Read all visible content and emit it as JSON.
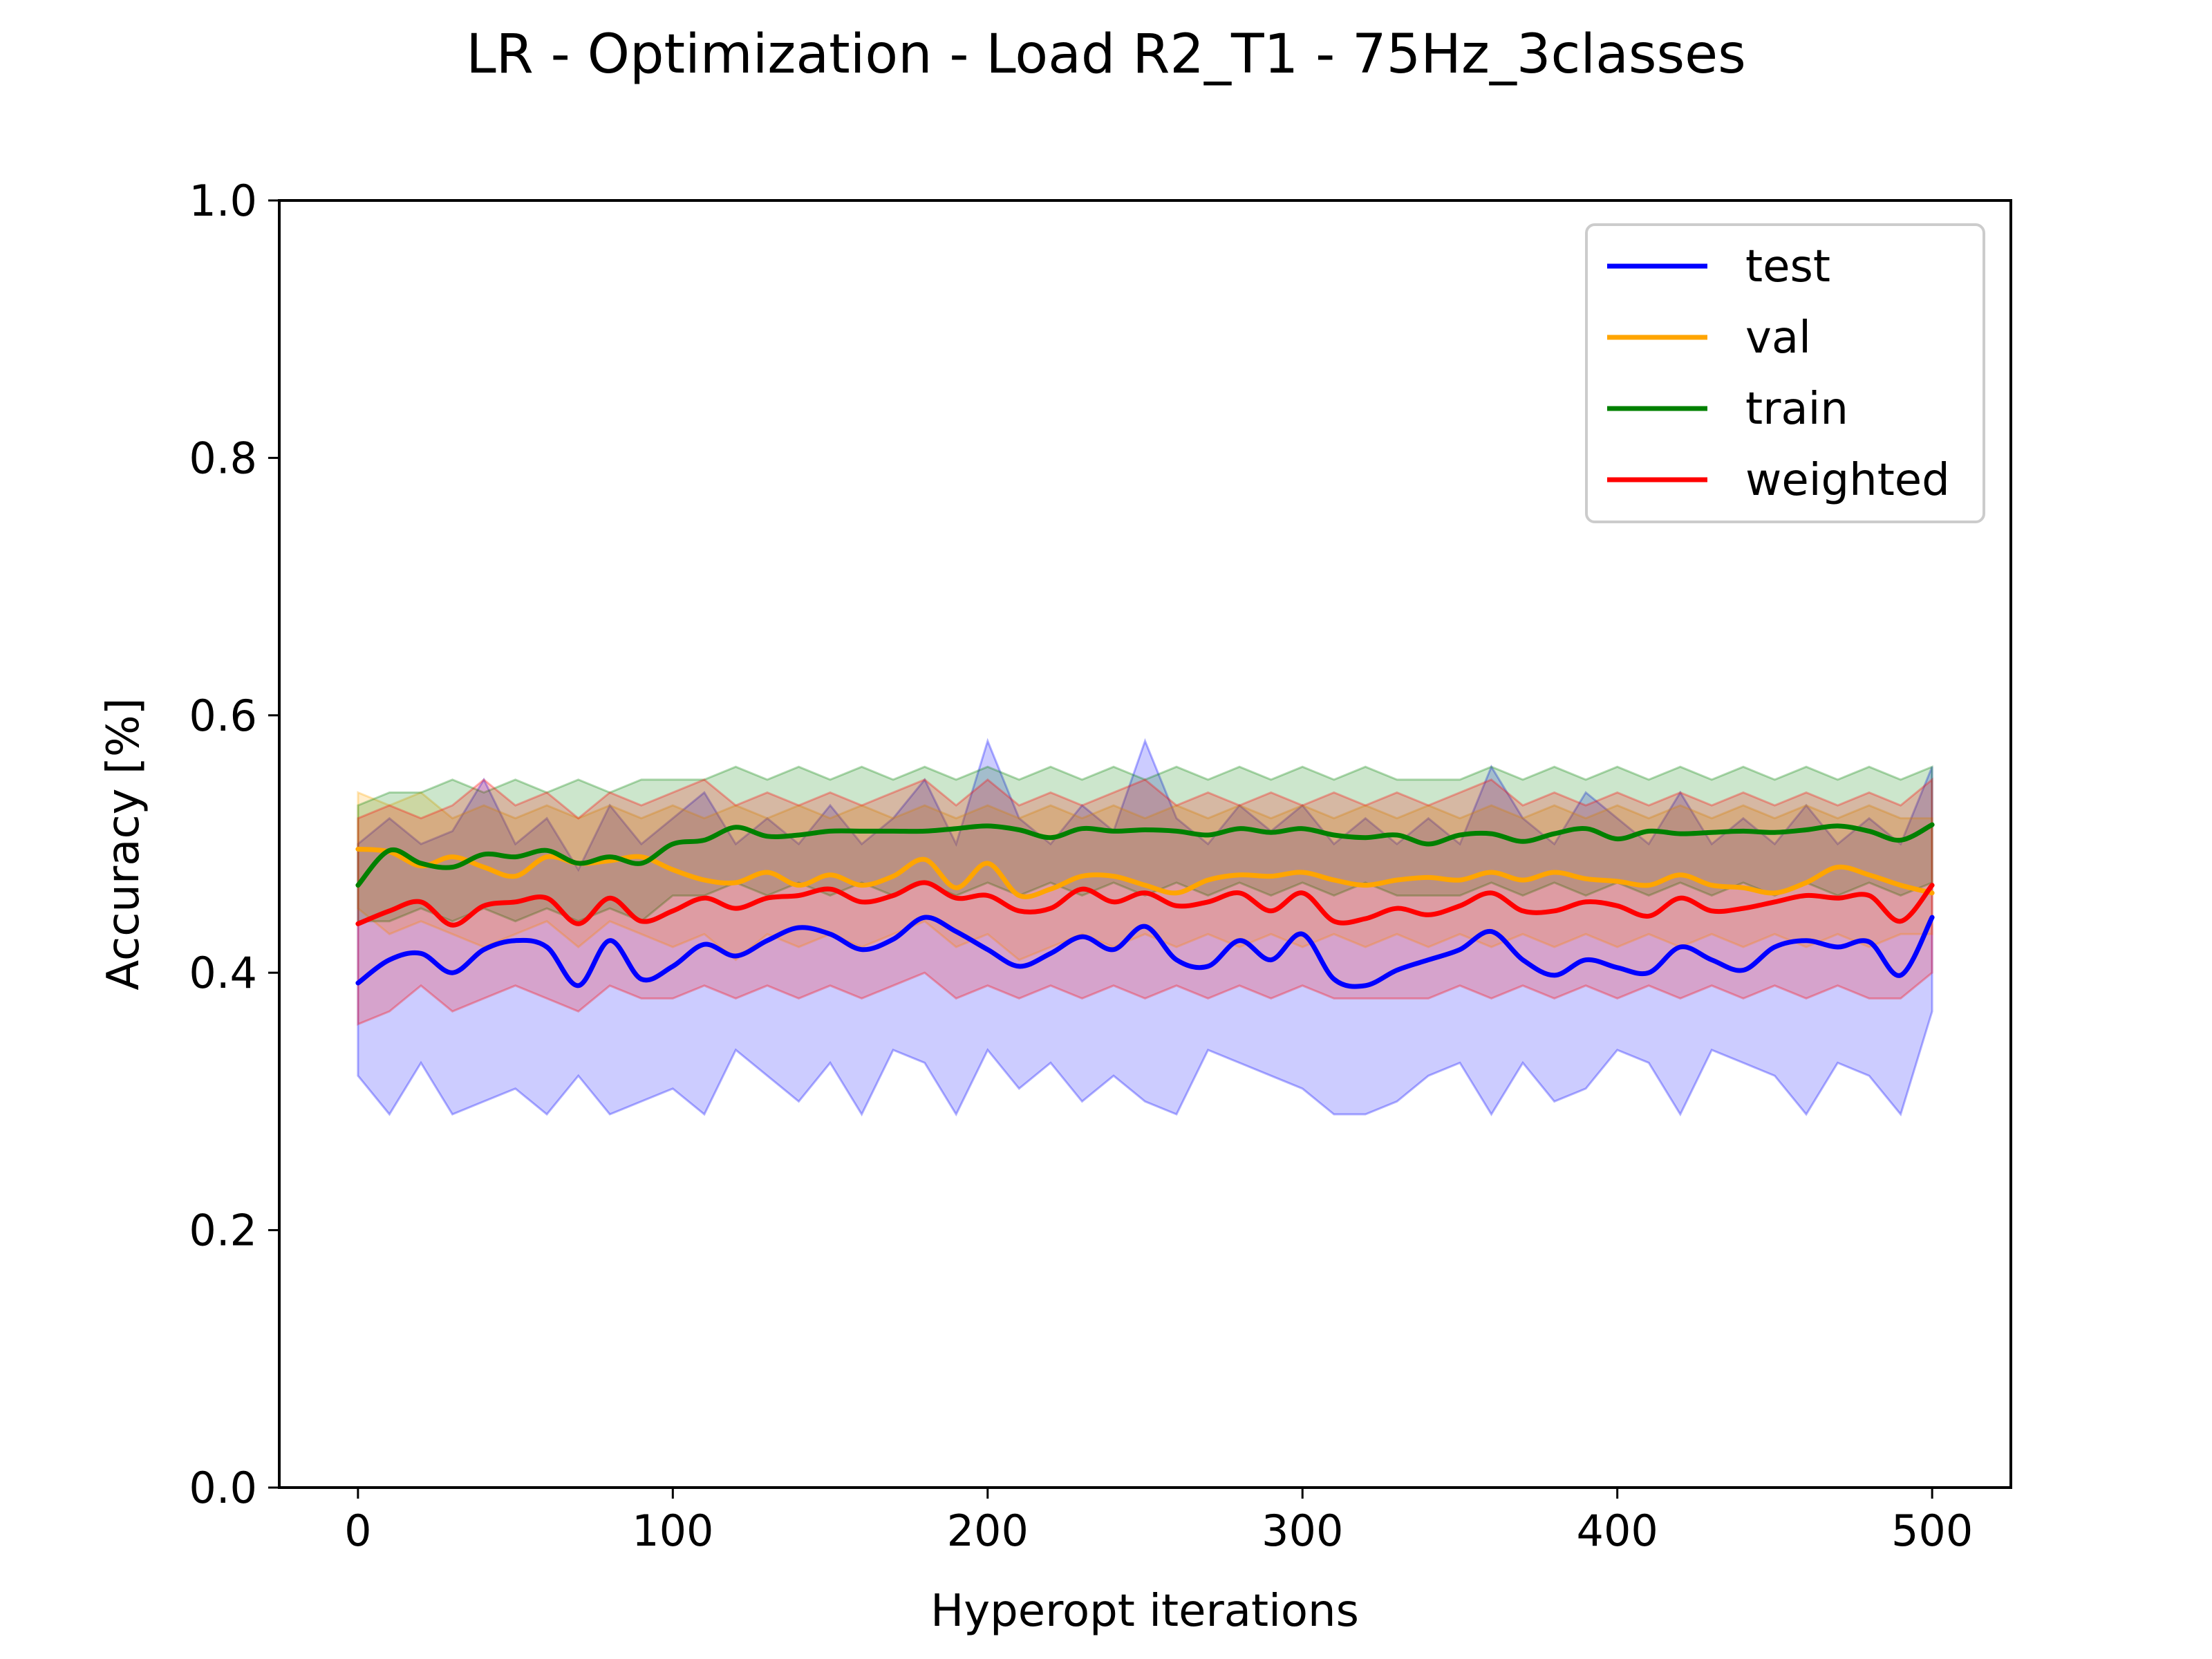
{
  "chart_data": {
    "type": "line",
    "title": "LR - Optimization - Load R2_T1 - 75Hz_3classes",
    "xlabel": "Hyperopt iterations",
    "ylabel": "Accuracy [%]",
    "xlim": [
      -25,
      525
    ],
    "ylim": [
      0.0,
      1.0
    ],
    "x_ticks": [
      0,
      100,
      200,
      300,
      400,
      500
    ],
    "x_tick_labels": [
      "0",
      "100",
      "200",
      "300",
      "400",
      "500"
    ],
    "y_ticks": [
      0.0,
      0.2,
      0.4,
      0.6,
      0.8,
      1.0
    ],
    "y_tick_labels": [
      "0.0",
      "0.2",
      "0.4",
      "0.6",
      "0.8",
      "1.0"
    ],
    "grid": false,
    "legend_position": "upper-right",
    "x": [
      0,
      10,
      20,
      30,
      40,
      50,
      60,
      70,
      80,
      90,
      100,
      110,
      120,
      130,
      140,
      150,
      160,
      170,
      180,
      190,
      200,
      210,
      220,
      230,
      240,
      250,
      260,
      270,
      280,
      290,
      300,
      310,
      320,
      330,
      340,
      350,
      360,
      370,
      380,
      390,
      400,
      410,
      420,
      430,
      440,
      450,
      460,
      470,
      480,
      490,
      500
    ],
    "series": [
      {
        "name": "test",
        "color": "#0000ff",
        "values": [
          0.392,
          0.41,
          0.415,
          0.4,
          0.418,
          0.425,
          0.42,
          0.39,
          0.425,
          0.395,
          0.405,
          0.422,
          0.413,
          0.425,
          0.435,
          0.43,
          0.418,
          0.426,
          0.443,
          0.432,
          0.418,
          0.405,
          0.415,
          0.428,
          0.418,
          0.436,
          0.41,
          0.405,
          0.425,
          0.41,
          0.43,
          0.395,
          0.39,
          0.402,
          0.41,
          0.418,
          0.432,
          0.41,
          0.398,
          0.41,
          0.404,
          0.4,
          0.42,
          0.41,
          0.402,
          0.42,
          0.425,
          0.42,
          0.424,
          0.398,
          0.443
        ],
        "band_min": [
          0.32,
          0.29,
          0.33,
          0.29,
          0.3,
          0.31,
          0.29,
          0.32,
          0.29,
          0.3,
          0.31,
          0.29,
          0.34,
          0.32,
          0.3,
          0.33,
          0.29,
          0.34,
          0.33,
          0.29,
          0.34,
          0.31,
          0.33,
          0.3,
          0.32,
          0.3,
          0.29,
          0.34,
          0.33,
          0.32,
          0.31,
          0.29,
          0.29,
          0.3,
          0.32,
          0.33,
          0.29,
          0.33,
          0.3,
          0.31,
          0.34,
          0.33,
          0.29,
          0.34,
          0.33,
          0.32,
          0.29,
          0.33,
          0.32,
          0.29,
          0.37
        ],
        "band_max": [
          0.5,
          0.52,
          0.5,
          0.51,
          0.55,
          0.5,
          0.52,
          0.48,
          0.53,
          0.5,
          0.52,
          0.54,
          0.5,
          0.52,
          0.5,
          0.53,
          0.5,
          0.52,
          0.55,
          0.5,
          0.58,
          0.52,
          0.5,
          0.53,
          0.51,
          0.58,
          0.52,
          0.5,
          0.53,
          0.51,
          0.53,
          0.5,
          0.52,
          0.5,
          0.52,
          0.5,
          0.56,
          0.52,
          0.5,
          0.54,
          0.52,
          0.5,
          0.54,
          0.5,
          0.52,
          0.5,
          0.53,
          0.5,
          0.52,
          0.5,
          0.56
        ]
      },
      {
        "name": "val",
        "color": "#ffa500",
        "values": [
          0.496,
          0.494,
          0.483,
          0.49,
          0.482,
          0.475,
          0.49,
          0.485,
          0.487,
          0.49,
          0.48,
          0.472,
          0.47,
          0.478,
          0.468,
          0.476,
          0.468,
          0.475,
          0.488,
          0.466,
          0.485,
          0.46,
          0.465,
          0.475,
          0.475,
          0.468,
          0.462,
          0.472,
          0.476,
          0.475,
          0.478,
          0.472,
          0.468,
          0.472,
          0.474,
          0.472,
          0.478,
          0.472,
          0.478,
          0.473,
          0.471,
          0.468,
          0.476,
          0.468,
          0.466,
          0.462,
          0.47,
          0.482,
          0.476,
          0.468,
          0.462
        ],
        "band_min": [
          0.45,
          0.43,
          0.44,
          0.43,
          0.42,
          0.43,
          0.44,
          0.42,
          0.44,
          0.43,
          0.42,
          0.43,
          0.41,
          0.43,
          0.42,
          0.43,
          0.42,
          0.43,
          0.44,
          0.42,
          0.43,
          0.41,
          0.42,
          0.43,
          0.42,
          0.43,
          0.42,
          0.43,
          0.42,
          0.43,
          0.42,
          0.43,
          0.42,
          0.43,
          0.42,
          0.43,
          0.42,
          0.43,
          0.42,
          0.43,
          0.42,
          0.43,
          0.42,
          0.43,
          0.42,
          0.43,
          0.42,
          0.43,
          0.42,
          0.43,
          0.43
        ],
        "band_max": [
          0.54,
          0.53,
          0.54,
          0.52,
          0.53,
          0.52,
          0.53,
          0.52,
          0.53,
          0.52,
          0.53,
          0.52,
          0.53,
          0.52,
          0.53,
          0.52,
          0.53,
          0.52,
          0.53,
          0.52,
          0.53,
          0.52,
          0.53,
          0.52,
          0.53,
          0.52,
          0.53,
          0.52,
          0.53,
          0.52,
          0.53,
          0.52,
          0.53,
          0.52,
          0.53,
          0.52,
          0.53,
          0.52,
          0.53,
          0.52,
          0.53,
          0.52,
          0.53,
          0.52,
          0.53,
          0.52,
          0.53,
          0.52,
          0.53,
          0.52,
          0.52
        ]
      },
      {
        "name": "train",
        "color": "#008000",
        "values": [
          0.468,
          0.495,
          0.485,
          0.482,
          0.492,
          0.49,
          0.495,
          0.485,
          0.49,
          0.485,
          0.5,
          0.503,
          0.513,
          0.506,
          0.507,
          0.51,
          0.51,
          0.51,
          0.51,
          0.512,
          0.514,
          0.511,
          0.505,
          0.512,
          0.51,
          0.511,
          0.51,
          0.507,
          0.512,
          0.509,
          0.512,
          0.507,
          0.505,
          0.507,
          0.5,
          0.507,
          0.508,
          0.502,
          0.508,
          0.512,
          0.504,
          0.51,
          0.508,
          0.509,
          0.51,
          0.509,
          0.511,
          0.514,
          0.51,
          0.503,
          0.515
        ],
        "band_min": [
          0.44,
          0.44,
          0.45,
          0.44,
          0.45,
          0.44,
          0.45,
          0.44,
          0.45,
          0.44,
          0.46,
          0.46,
          0.47,
          0.46,
          0.47,
          0.46,
          0.47,
          0.46,
          0.47,
          0.46,
          0.47,
          0.46,
          0.47,
          0.46,
          0.47,
          0.46,
          0.47,
          0.46,
          0.47,
          0.46,
          0.47,
          0.46,
          0.47,
          0.46,
          0.46,
          0.46,
          0.47,
          0.46,
          0.47,
          0.46,
          0.47,
          0.46,
          0.47,
          0.46,
          0.47,
          0.46,
          0.47,
          0.46,
          0.47,
          0.46,
          0.47
        ],
        "band_max": [
          0.53,
          0.54,
          0.54,
          0.55,
          0.54,
          0.55,
          0.54,
          0.55,
          0.54,
          0.55,
          0.55,
          0.55,
          0.56,
          0.55,
          0.56,
          0.55,
          0.56,
          0.55,
          0.56,
          0.55,
          0.56,
          0.55,
          0.56,
          0.55,
          0.56,
          0.55,
          0.56,
          0.55,
          0.56,
          0.55,
          0.56,
          0.55,
          0.56,
          0.55,
          0.55,
          0.55,
          0.56,
          0.55,
          0.56,
          0.55,
          0.56,
          0.55,
          0.56,
          0.55,
          0.56,
          0.55,
          0.56,
          0.55,
          0.56,
          0.55,
          0.56
        ]
      },
      {
        "name": "weighted",
        "color": "#ff0000",
        "values": [
          0.438,
          0.448,
          0.455,
          0.437,
          0.452,
          0.455,
          0.458,
          0.438,
          0.458,
          0.44,
          0.448,
          0.458,
          0.45,
          0.458,
          0.46,
          0.465,
          0.455,
          0.46,
          0.47,
          0.458,
          0.46,
          0.448,
          0.45,
          0.465,
          0.455,
          0.462,
          0.452,
          0.455,
          0.462,
          0.448,
          0.462,
          0.44,
          0.442,
          0.45,
          0.445,
          0.452,
          0.462,
          0.448,
          0.448,
          0.455,
          0.452,
          0.444,
          0.458,
          0.448,
          0.45,
          0.455,
          0.46,
          0.458,
          0.46,
          0.44,
          0.468
        ],
        "band_min": [
          0.36,
          0.37,
          0.39,
          0.37,
          0.38,
          0.39,
          0.38,
          0.37,
          0.39,
          0.38,
          0.38,
          0.39,
          0.38,
          0.39,
          0.38,
          0.39,
          0.38,
          0.39,
          0.4,
          0.38,
          0.39,
          0.38,
          0.39,
          0.38,
          0.39,
          0.38,
          0.39,
          0.38,
          0.39,
          0.38,
          0.39,
          0.38,
          0.38,
          0.38,
          0.38,
          0.39,
          0.38,
          0.39,
          0.38,
          0.39,
          0.38,
          0.39,
          0.38,
          0.39,
          0.38,
          0.39,
          0.38,
          0.39,
          0.38,
          0.38,
          0.4
        ],
        "band_max": [
          0.52,
          0.53,
          0.52,
          0.53,
          0.55,
          0.53,
          0.54,
          0.52,
          0.54,
          0.53,
          0.54,
          0.55,
          0.53,
          0.54,
          0.53,
          0.54,
          0.53,
          0.54,
          0.55,
          0.53,
          0.55,
          0.53,
          0.54,
          0.53,
          0.54,
          0.55,
          0.53,
          0.54,
          0.53,
          0.54,
          0.53,
          0.54,
          0.53,
          0.54,
          0.53,
          0.54,
          0.55,
          0.53,
          0.54,
          0.53,
          0.54,
          0.53,
          0.54,
          0.53,
          0.54,
          0.53,
          0.54,
          0.53,
          0.54,
          0.53,
          0.55
        ]
      }
    ]
  }
}
